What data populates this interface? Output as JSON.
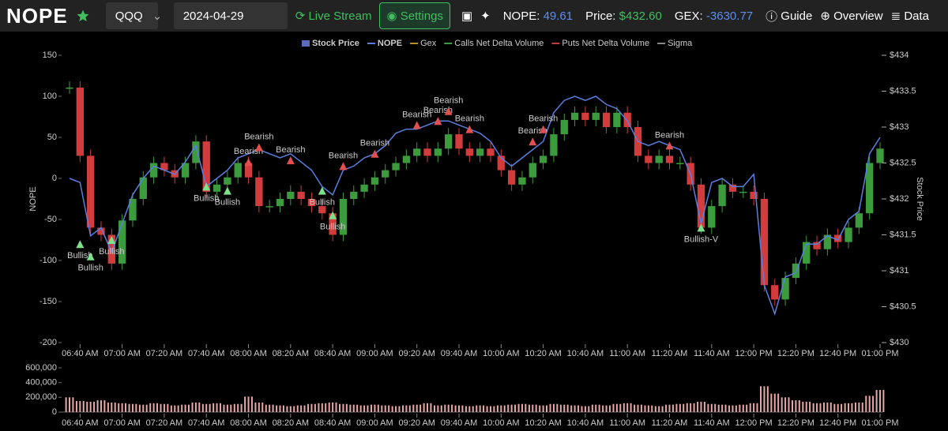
{
  "nav": {
    "logo": "NOPE",
    "ticker": "QQQ",
    "date": "2024-04-29",
    "live": "Live Stream",
    "settings": "Settings",
    "nope_label": "NOPE:",
    "nope_value": "49.61",
    "price_label": "Price:",
    "price_value": "$432.60",
    "gex_label": "GEX:",
    "gex_value": "-3630.77",
    "guide": "Guide",
    "overview": "Overview",
    "data": "Data"
  },
  "chart_data": [
    {
      "type": "candlestick",
      "legend": [
        {
          "name": "Stock Price",
          "color": "#5b6bbf"
        },
        {
          "name": "NOPE",
          "color": "#5b7fe0"
        },
        {
          "name": "Gex",
          "color": "#b8902a"
        },
        {
          "name": "Calls Net Delta Volume",
          "color": "#3c9b3c"
        },
        {
          "name": "Puts Net Delta Volume",
          "color": "#c03a3a"
        },
        {
          "name": "Sigma",
          "color": "#888888"
        }
      ],
      "ylabel": "NOPE",
      "y2label": "Stock Price",
      "categories": [
        null,
        "06:40 AM",
        null,
        null,
        null,
        "07:00 AM",
        null,
        null,
        null,
        "07:20 AM",
        null,
        null,
        null,
        "07:40 AM",
        null,
        null,
        null,
        "08:00 AM",
        null,
        null,
        null,
        "08:20 AM",
        null,
        null,
        null,
        "08:40 AM",
        null,
        null,
        null,
        "09:00 AM",
        null,
        null,
        null,
        "09:20 AM",
        null,
        null,
        null,
        "09:40 AM",
        null,
        null,
        null,
        "10:00 AM",
        null,
        null,
        null,
        "10:20 AM",
        null,
        null,
        null,
        "10:40 AM",
        null,
        null,
        null,
        "11:00 AM",
        null,
        null,
        null,
        "11:20 AM",
        null,
        null,
        null,
        "11:40 AM",
        null,
        null,
        null,
        "12:00 PM",
        null,
        null,
        null,
        "12:20 PM",
        null,
        null,
        null,
        "12:40 PM",
        null,
        null,
        null,
        "01:00 PM"
      ],
      "price": {
        "up_color": "#3c9b3c",
        "down_color": "#d23c3c",
        "axis": "y2",
        "values": [
          433.55,
          432.6,
          431.6,
          431.5,
          431.1,
          431.7,
          432.0,
          432.3,
          432.5,
          432.4,
          432.3,
          432.5,
          432.8,
          432.1,
          432.2,
          432.3,
          432.5,
          432.3,
          431.9,
          431.9,
          432.0,
          432.1,
          432.0,
          431.9,
          431.8,
          431.5,
          432.0,
          432.1,
          432.2,
          432.3,
          432.4,
          432.5,
          432.6,
          432.7,
          432.6,
          432.7,
          432.9,
          432.7,
          432.6,
          432.7,
          432.6,
          432.4,
          432.2,
          432.3,
          432.5,
          432.6,
          432.9,
          433.1,
          433.2,
          433.1,
          433.2,
          433.0,
          433.2,
          433.0,
          432.6,
          432.5,
          432.6,
          432.5,
          432.5,
          432.2,
          431.6,
          431.9,
          432.2,
          432.1,
          432.1,
          432.0,
          430.8,
          430.6,
          430.9,
          431.1,
          431.4,
          431.3,
          431.5,
          431.4,
          431.6,
          431.8,
          432.5,
          432.7
        ]
      },
      "nope": {
        "color": "#5b7fe0",
        "values": [
          0,
          -5,
          -70,
          -60,
          -90,
          -55,
          -20,
          0,
          15,
          10,
          5,
          20,
          40,
          -10,
          0,
          10,
          25,
          30,
          35,
          30,
          25,
          30,
          20,
          10,
          -10,
          -20,
          10,
          15,
          25,
          30,
          40,
          55,
          60,
          60,
          65,
          70,
          70,
          65,
          60,
          55,
          45,
          25,
          15,
          25,
          35,
          45,
          80,
          95,
          100,
          95,
          100,
          90,
          85,
          70,
          45,
          40,
          45,
          40,
          35,
          5,
          -55,
          -5,
          0,
          -10,
          -10,
          5,
          -130,
          -165,
          -120,
          -115,
          -80,
          -80,
          -70,
          -75,
          -50,
          -40,
          30,
          50
        ]
      },
      "ylim": [
        -200,
        150
      ],
      "yticks": [
        -200,
        -150,
        -100,
        -50,
        0,
        50,
        100,
        150
      ],
      "y2lim": [
        430,
        434
      ],
      "y2ticks": [
        {
          "value": 430,
          "label": "$430"
        },
        {
          "value": 430.5,
          "label": "$430.5"
        },
        {
          "value": 431,
          "label": "$431"
        },
        {
          "value": 431.5,
          "label": "$431.5"
        },
        {
          "value": 432,
          "label": "$432"
        },
        {
          "value": 432.5,
          "label": "$432.5"
        },
        {
          "value": 433,
          "label": "$433"
        },
        {
          "value": 433.5,
          "label": "$433.5"
        },
        {
          "value": 434,
          "label": "$434"
        }
      ],
      "signals": [
        {
          "at": 1,
          "value": -80,
          "label": "Bullish"
        },
        {
          "at": 2,
          "value": -95,
          "label": "Bullish"
        },
        {
          "at": 4,
          "value": -75,
          "label": "Bullish"
        },
        {
          "at": 13,
          "value": -10,
          "label": "Bullish"
        },
        {
          "at": 15,
          "value": -15,
          "label": "Bullish"
        },
        {
          "at": 17,
          "value": 20,
          "label": "Bearish"
        },
        {
          "at": 18,
          "value": 38,
          "label": "Bearish"
        },
        {
          "at": 21,
          "value": 22,
          "label": "Bearish"
        },
        {
          "at": 24,
          "value": -15,
          "label": "Bullish"
        },
        {
          "at": 25,
          "value": -45,
          "label": "Bullish"
        },
        {
          "at": 26,
          "value": 15,
          "label": "Bearish"
        },
        {
          "at": 29,
          "value": 30,
          "label": "Bearish"
        },
        {
          "at": 33,
          "value": 65,
          "label": "Bearish"
        },
        {
          "at": 35,
          "value": 70,
          "label": "Bearish"
        },
        {
          "at": 36,
          "value": 82,
          "label": "Bearish"
        },
        {
          "at": 38,
          "value": 60,
          "label": "Bearish"
        },
        {
          "at": 44,
          "value": 45,
          "label": "Bearish"
        },
        {
          "at": 45,
          "value": 60,
          "label": "Bearish"
        },
        {
          "at": 57,
          "value": 40,
          "label": "Bearish"
        },
        {
          "at": 60,
          "value": -60,
          "label": "Bullish-V"
        }
      ],
      "bullish_color": "#7ee08a",
      "bearish_color": "#e05050"
    },
    {
      "type": "bar",
      "color": "#e8a8a8",
      "categories": [
        null,
        "06:40 AM",
        null,
        null,
        null,
        "07:00 AM",
        null,
        null,
        null,
        "07:20 AM",
        null,
        null,
        null,
        "07:40 AM",
        null,
        null,
        null,
        "08:00 AM",
        null,
        null,
        null,
        "08:20 AM",
        null,
        null,
        null,
        "08:40 AM",
        null,
        null,
        null,
        "09:00 AM",
        null,
        null,
        null,
        "09:20 AM",
        null,
        null,
        null,
        "09:40 AM",
        null,
        null,
        null,
        "10:00 AM",
        null,
        null,
        null,
        "10:20 AM",
        null,
        null,
        null,
        "10:40 AM",
        null,
        null,
        null,
        "11:00 AM",
        null,
        null,
        null,
        "11:20 AM",
        null,
        null,
        null,
        "11:40 AM",
        null,
        null,
        null,
        "12:00 PM",
        null,
        null,
        null,
        "12:20 PM",
        null,
        null,
        null,
        "12:40 PM",
        null,
        null,
        null,
        "01:00 PM"
      ],
      "values": [
        200000,
        150000,
        140000,
        160000,
        130000,
        120000,
        110000,
        100000,
        120000,
        110000,
        90000,
        100000,
        130000,
        110000,
        120000,
        100000,
        110000,
        210000,
        130000,
        100000,
        90000,
        80000,
        90000,
        110000,
        120000,
        130000,
        110000,
        100000,
        90000,
        100000,
        90000,
        80000,
        90000,
        100000,
        120000,
        90000,
        100000,
        90000,
        80000,
        90000,
        80000,
        90000,
        100000,
        110000,
        100000,
        90000,
        110000,
        100000,
        90000,
        80000,
        100000,
        90000,
        110000,
        120000,
        100000,
        90000,
        80000,
        100000,
        110000,
        120000,
        140000,
        110000,
        100000,
        90000,
        100000,
        120000,
        350000,
        250000,
        200000,
        160000,
        140000,
        120000,
        130000,
        110000,
        120000,
        130000,
        220000,
        300000
      ],
      "ylim": [
        0,
        600000
      ],
      "yticks": [
        {
          "value": 0,
          "label": "0"
        },
        {
          "value": 200000,
          "label": "200,000"
        },
        {
          "value": 400000,
          "label": "400,000"
        },
        {
          "value": 600000,
          "label": "600,000"
        }
      ]
    }
  ]
}
